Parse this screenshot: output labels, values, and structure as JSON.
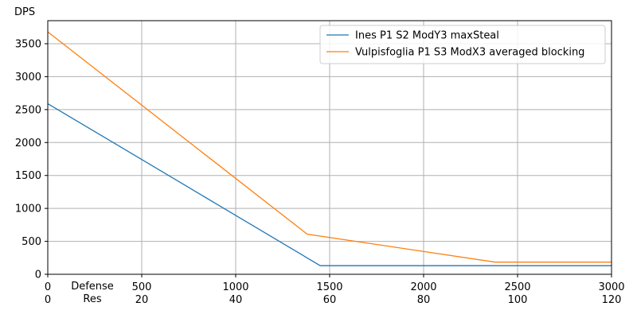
{
  "chart_data": {
    "type": "line",
    "title": "",
    "ylabel": "DPS",
    "xlabel_lines": [
      "Defense",
      "Res"
    ],
    "xlim": [
      0,
      3000
    ],
    "ylim": [
      0,
      3850
    ],
    "x_ticks": [
      0,
      500,
      1000,
      1500,
      2000,
      2500,
      3000
    ],
    "x_tick_labels": [
      "0",
      "500",
      "1000",
      "1500",
      "2000",
      "2500",
      "3000"
    ],
    "x2_tick_labels": [
      "0",
      "20",
      "40",
      "60",
      "80",
      "100",
      "120"
    ],
    "y_ticks": [
      0,
      500,
      1000,
      1500,
      2000,
      2500,
      3000,
      3500
    ],
    "y_tick_labels": [
      "0",
      "500",
      "1000",
      "1500",
      "2000",
      "2500",
      "3000",
      "3500"
    ],
    "grid": true,
    "legend_position": "top-right",
    "series": [
      {
        "name": "Ines P1 S2 ModY3 maxSteal",
        "color": "#1f77b4",
        "x": [
          0,
          1450,
          3000
        ],
        "y": [
          2590,
          130,
          130
        ]
      },
      {
        "name": "Vulpisfoglia P1 S3 ModX3 averaged blocking",
        "color": "#ff7f0e",
        "x": [
          0,
          1380,
          2380,
          3000
        ],
        "y": [
          3680,
          610,
          185,
          185
        ]
      }
    ]
  }
}
